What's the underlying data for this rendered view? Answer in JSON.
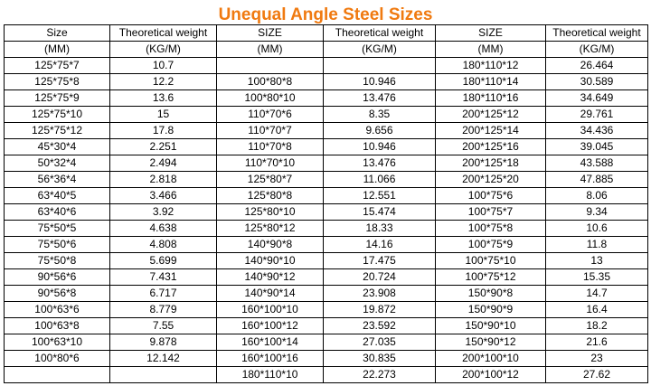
{
  "title": "Unequal Angle Steel Sizes",
  "header_row1": [
    "Size",
    "Theoretical weight",
    "SIZE",
    "Theoretical weight",
    "SIZE",
    "Theoretical weight"
  ],
  "header_row2": [
    "(MM)",
    "(KG/M)",
    "(MM)",
    "(KG/M)",
    "(MM)",
    "(KG/M)"
  ],
  "rows": [
    [
      "125*75*7",
      "10.7",
      "",
      "",
      "180*110*12",
      "26.464"
    ],
    [
      "125*75*8",
      "12.2",
      "100*80*8",
      "10.946",
      "180*110*14",
      "30.589"
    ],
    [
      "125*75*9",
      "13.6",
      "100*80*10",
      "13.476",
      "180*110*16",
      "34.649"
    ],
    [
      "125*75*10",
      "15",
      "110*70*6",
      "8.35",
      "200*125*12",
      "29.761"
    ],
    [
      "125*75*12",
      "17.8",
      "110*70*7",
      "9.656",
      "200*125*14",
      "34.436"
    ],
    [
      "45*30*4",
      "2.251",
      "110*70*8",
      "10.946",
      "200*125*16",
      "39.045"
    ],
    [
      "50*32*4",
      "2.494",
      "110*70*10",
      "13.476",
      "200*125*18",
      "43.588"
    ],
    [
      "56*36*4",
      "2.818",
      "125*80*7",
      "11.066",
      "200*125*20",
      "47.885"
    ],
    [
      "63*40*5",
      "3.466",
      "125*80*8",
      "12.551",
      "100*75*6",
      "8.06"
    ],
    [
      "63*40*6",
      "3.92",
      "125*80*10",
      "15.474",
      "100*75*7",
      "9.34"
    ],
    [
      "75*50*5",
      "4.638",
      "125*80*12",
      "18.33",
      "100*75*8",
      "10.6"
    ],
    [
      "75*50*6",
      "4.808",
      "140*90*8",
      "14.16",
      "100*75*9",
      "11.8"
    ],
    [
      "75*50*8",
      "5.699",
      "140*90*10",
      "17.475",
      "100*75*10",
      "13"
    ],
    [
      "90*56*6",
      "7.431",
      "140*90*12",
      "20.724",
      "100*75*12",
      "15.35"
    ],
    [
      "90*56*8",
      "6.717",
      "140*90*14",
      "23.908",
      "150*90*8",
      "14.7"
    ],
    [
      "100*63*6",
      "8.779",
      "160*100*10",
      "19.872",
      "150*90*9",
      "16.4"
    ],
    [
      "100*63*8",
      "7.55",
      "160*100*12",
      "23.592",
      "150*90*10",
      "18.2"
    ],
    [
      "100*63*10",
      "9.878",
      "160*100*14",
      "27.035",
      "150*90*12",
      "21.6"
    ],
    [
      "100*80*6",
      "12.142",
      "160*100*16",
      "30.835",
      "200*100*10",
      "23"
    ],
    [
      "",
      "",
      "180*110*10",
      "22.273",
      "200*100*12",
      "27.62"
    ]
  ]
}
